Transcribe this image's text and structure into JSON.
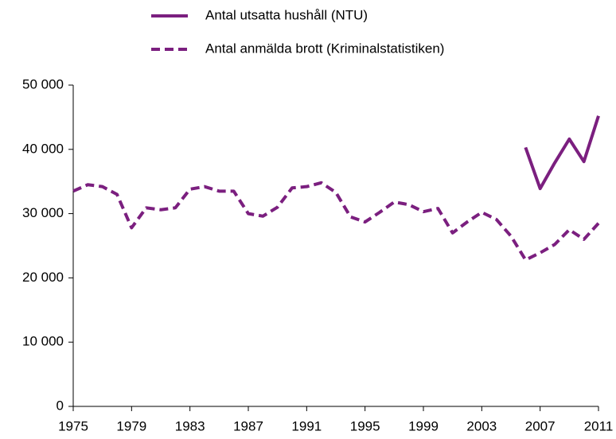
{
  "chart_data": {
    "type": "line",
    "x": [
      1975,
      1976,
      1977,
      1978,
      1979,
      1980,
      1981,
      1982,
      1983,
      1984,
      1985,
      1986,
      1987,
      1988,
      1989,
      1990,
      1991,
      1992,
      1993,
      1994,
      1995,
      1996,
      1997,
      1998,
      1999,
      2000,
      2001,
      2002,
      2003,
      2004,
      2005,
      2006,
      2007,
      2008,
      2009,
      2010,
      2011
    ],
    "series": [
      {
        "name": "Antal utsatta hushåll (NTU)",
        "color": "#7b1f7f",
        "dash": false,
        "values": [
          null,
          null,
          null,
          null,
          null,
          null,
          null,
          null,
          null,
          null,
          null,
          null,
          null,
          null,
          null,
          null,
          null,
          null,
          null,
          null,
          null,
          null,
          null,
          null,
          null,
          null,
          null,
          null,
          null,
          null,
          null,
          40300,
          33900,
          37900,
          41600,
          38100,
          45200
        ]
      },
      {
        "name": "Antal anmälda brott (Kriminalstatistiken)",
        "color": "#7b1f7f",
        "dash": true,
        "values": [
          33500,
          34500,
          34200,
          33000,
          27800,
          30900,
          30600,
          30900,
          33800,
          34200,
          33500,
          33500,
          30000,
          29600,
          31000,
          34000,
          34200,
          34800,
          33300,
          29500,
          28700,
          30200,
          31800,
          31400,
          30300,
          30800,
          27000,
          28700,
          30200,
          29100,
          26500,
          22800,
          23900,
          25200,
          27500,
          26000,
          28500
        ]
      }
    ],
    "xlim": [
      1975,
      2011
    ],
    "xticks": [
      1975,
      1979,
      1983,
      1987,
      1991,
      1995,
      1999,
      2003,
      2007,
      2011
    ],
    "ylim": [
      0,
      50000
    ],
    "yticks": [
      0,
      {
        "value": 10000,
        "label": "10 000"
      },
      {
        "value": 20000,
        "label": "20 000"
      },
      {
        "value": 30000,
        "label": "30 000"
      },
      {
        "value": 40000,
        "label": "40 000"
      },
      {
        "value": 50000,
        "label": "50 000"
      }
    ],
    "grid": false,
    "legend": "top"
  }
}
